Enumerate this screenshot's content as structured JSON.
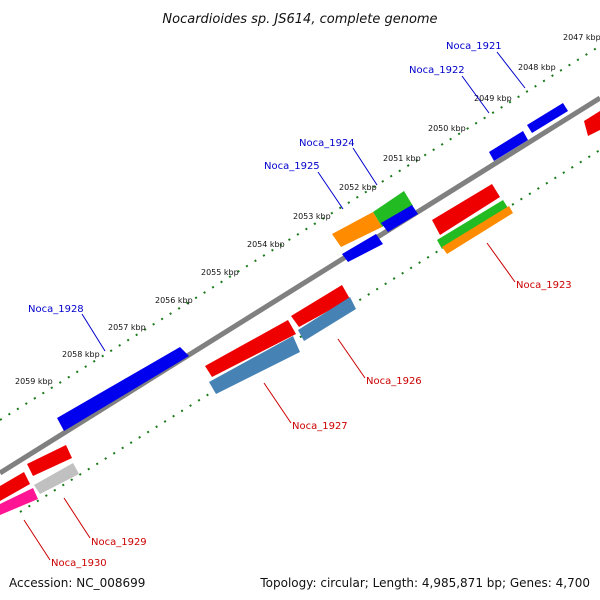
{
  "title": "Nocardioides sp. JS614, complete genome",
  "footer": {
    "accession": "Accession: NC_008699",
    "summary": "Topology: circular; Length: 4,985,871 bp; Genes: 4,700"
  },
  "scale_labels": [
    "2047 kbp",
    "2048 kbp",
    "2049 kbp",
    "2050 kbp",
    "2051 kbp",
    "2052 kbp",
    "2053 kbp",
    "2054 kbp",
    "2055 kbp",
    "2056 kbp",
    "2057 kbp",
    "2058 kbp",
    "2059 kbp"
  ],
  "genes": {
    "noca_1921": "Noca_1921",
    "noca_1922": "Noca_1922",
    "noca_1923": "Noca_1923",
    "noca_1924": "Noca_1924",
    "noca_1925": "Noca_1925",
    "noca_1926": "Noca_1926",
    "noca_1927": "Noca_1927",
    "noca_1928": "Noca_1928",
    "noca_1929": "Noca_1929",
    "noca_1930": "Noca_1930"
  },
  "colors": {
    "forward_label": "#0000cc",
    "reverse_label": "#cc0000",
    "backbone": "#888888",
    "dots": "#1a7a1a",
    "blue": "#0000ee",
    "red": "#ee0000",
    "green": "#22bb22",
    "orange": "#ff8c00",
    "steel": "#4682b4",
    "gray": "#c0c0c0",
    "pink": "#ff1493"
  }
}
